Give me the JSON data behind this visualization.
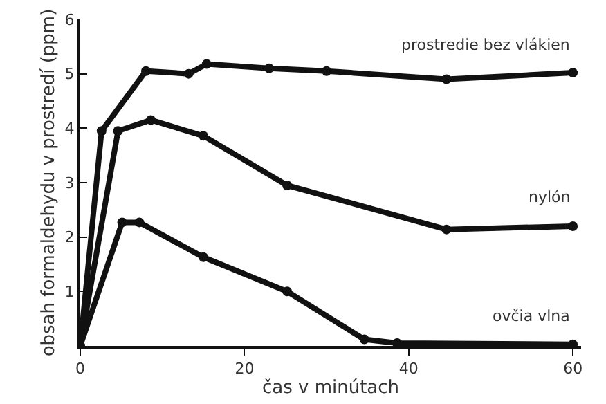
{
  "chart_data": {
    "type": "line",
    "xlabel": "čas v minútach",
    "ylabel": "obsah formaldehydu v prostredí (ppm)",
    "xlim": [
      0,
      61
    ],
    "ylim": [
      0,
      6
    ],
    "xticks": [
      0,
      20,
      40,
      60
    ],
    "yticks": [
      {
        "value": 0,
        "label": null
      },
      1,
      2,
      3,
      4,
      5,
      6
    ],
    "marker": "circle",
    "line_style": "solid",
    "legend": false,
    "series": [
      {
        "name": "prostredie bez vlákien",
        "color": "#111111",
        "x": [
          0,
          2.6,
          8,
          13.2,
          15.4,
          23,
          30,
          44.6,
          60
        ],
        "values": [
          0,
          3.95,
          5.05,
          5.0,
          5.18,
          5.1,
          5.05,
          4.9,
          5.02
        ]
      },
      {
        "name": "nylón",
        "color": "#111111",
        "x": [
          0,
          4.6,
          8.6,
          15,
          25.2,
          44.6,
          60
        ],
        "values": [
          0,
          3.95,
          4.15,
          3.86,
          2.95,
          2.14,
          2.2
        ]
      },
      {
        "name": "ovčia vlna",
        "color": "#111111",
        "x": [
          0,
          5.1,
          7.2,
          15,
          25.2,
          34.6,
          38.6,
          60
        ],
        "values": [
          0,
          2.27,
          2.27,
          1.63,
          1.0,
          0.12,
          0.05,
          0.03
        ]
      }
    ]
  }
}
